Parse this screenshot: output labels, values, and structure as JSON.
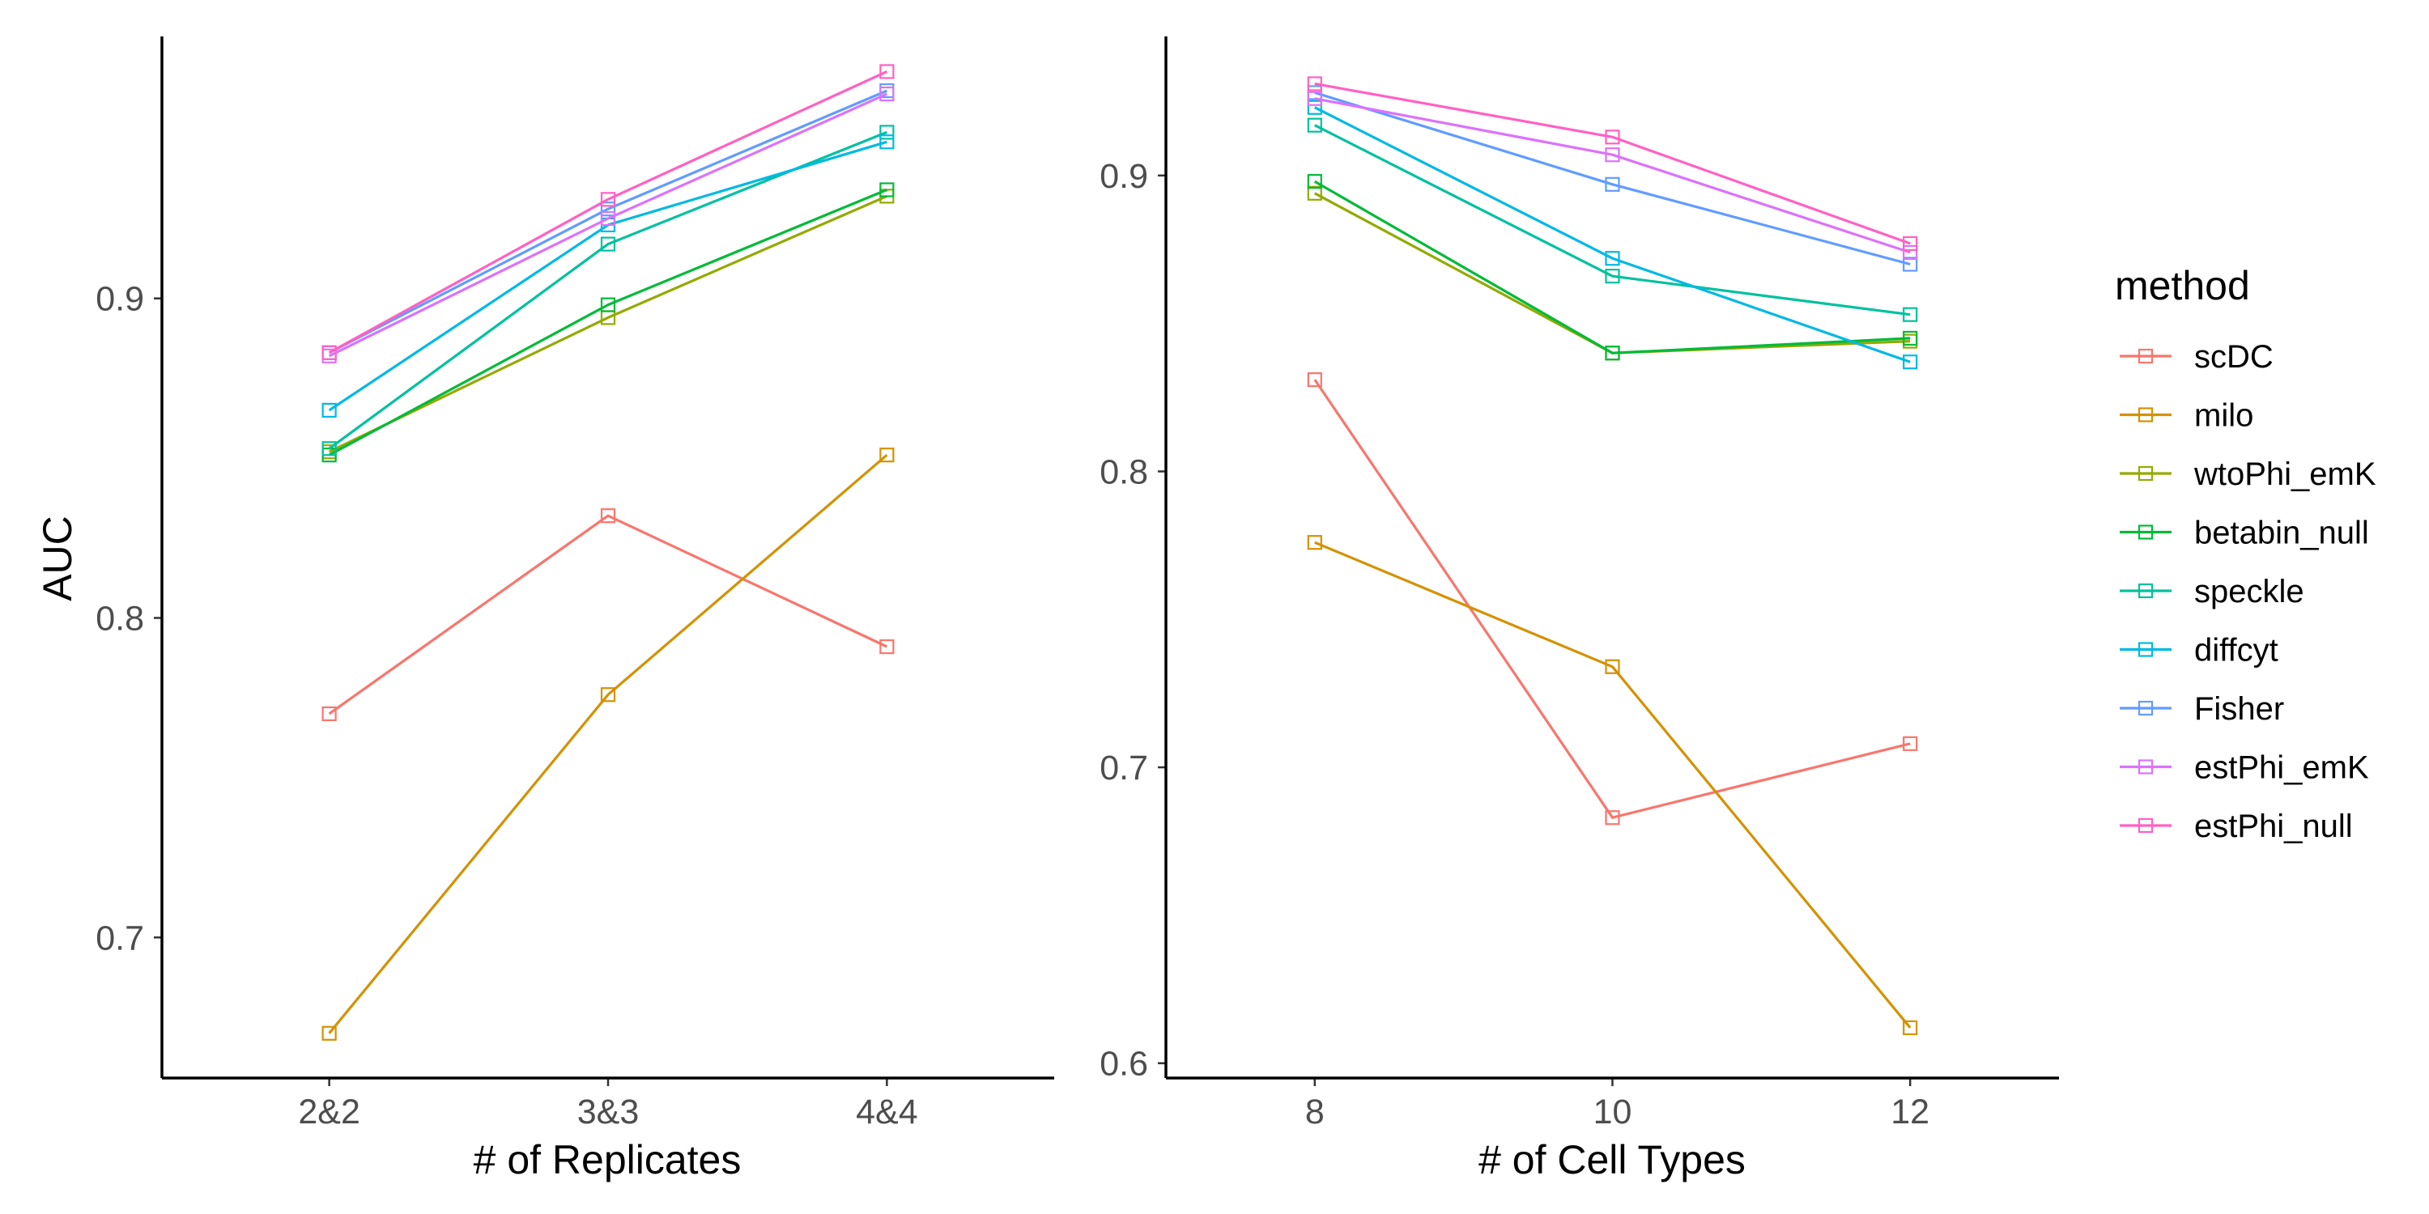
{
  "colors": {
    "scDC": "#F8766D",
    "milo": "#D39200",
    "wtoPhi_emK": "#93AA00",
    "betabin_null": "#00BA38",
    "speckle": "#00C19F",
    "diffcyt": "#00B9E3",
    "Fisher": "#619CFF",
    "estPhi_emK": "#DB72FB",
    "estPhi_null": "#FF61C3"
  },
  "legend": {
    "title": "method",
    "items": [
      "scDC",
      "milo",
      "wtoPhi_emK",
      "betabin_null",
      "speckle",
      "diffcyt",
      "Fisher",
      "estPhi_emK",
      "estPhi_null"
    ]
  },
  "chart_data": [
    {
      "type": "line",
      "marker": "open-square",
      "xlabel": "# of Replicates",
      "ylabel": "AUC",
      "categories": [
        "2&2",
        "3&3",
        "4&4"
      ],
      "ylim": [
        0.656,
        0.982
      ],
      "yticks": [
        0.7,
        0.8,
        0.9
      ],
      "yticklabels": [
        "0.7",
        "0.8",
        "0.9"
      ],
      "grid": false,
      "series": [
        {
          "name": "scDC",
          "values": [
            0.77,
            0.832,
            0.791
          ]
        },
        {
          "name": "milo",
          "values": [
            0.67,
            0.776,
            0.851
          ]
        },
        {
          "name": "wtoPhi_emK",
          "values": [
            0.852,
            0.894,
            0.932
          ]
        },
        {
          "name": "betabin_null",
          "values": [
            0.851,
            0.898,
            0.934
          ]
        },
        {
          "name": "speckle",
          "values": [
            0.853,
            0.917,
            0.952
          ]
        },
        {
          "name": "diffcyt",
          "values": [
            0.865,
            0.923,
            0.949
          ]
        },
        {
          "name": "Fisher",
          "values": [
            0.883,
            0.928,
            0.965
          ]
        },
        {
          "name": "estPhi_emK",
          "values": [
            0.882,
            0.925,
            0.964
          ]
        },
        {
          "name": "estPhi_null",
          "values": [
            0.883,
            0.931,
            0.971
          ]
        }
      ]
    },
    {
      "type": "line",
      "marker": "open-square",
      "xlabel": "# of Cell Types",
      "ylabel": "",
      "x": [
        8,
        10,
        12
      ],
      "xlim": [
        7,
        13
      ],
      "xticks": [
        8,
        10,
        12
      ],
      "xticklabels": [
        "8",
        "10",
        "12"
      ],
      "ylim": [
        0.595,
        0.947
      ],
      "yticks": [
        0.6,
        0.7,
        0.8,
        0.9
      ],
      "yticklabels": [
        "0.6",
        "0.7",
        "0.8",
        "0.9"
      ],
      "grid": false,
      "series": [
        {
          "name": "scDC",
          "values": [
            0.831,
            0.683,
            0.708
          ]
        },
        {
          "name": "milo",
          "values": [
            0.776,
            0.734,
            0.612
          ]
        },
        {
          "name": "wtoPhi_emK",
          "values": [
            0.894,
            0.84,
            0.844
          ]
        },
        {
          "name": "betabin_null",
          "values": [
            0.898,
            0.84,
            0.845
          ]
        },
        {
          "name": "speckle",
          "values": [
            0.917,
            0.866,
            0.853
          ]
        },
        {
          "name": "diffcyt",
          "values": [
            0.923,
            0.872,
            0.837
          ]
        },
        {
          "name": "Fisher",
          "values": [
            0.928,
            0.897,
            0.87
          ]
        },
        {
          "name": "estPhi_emK",
          "values": [
            0.926,
            0.907,
            0.874
          ]
        },
        {
          "name": "estPhi_null",
          "values": [
            0.931,
            0.913,
            0.877
          ]
        }
      ]
    }
  ]
}
